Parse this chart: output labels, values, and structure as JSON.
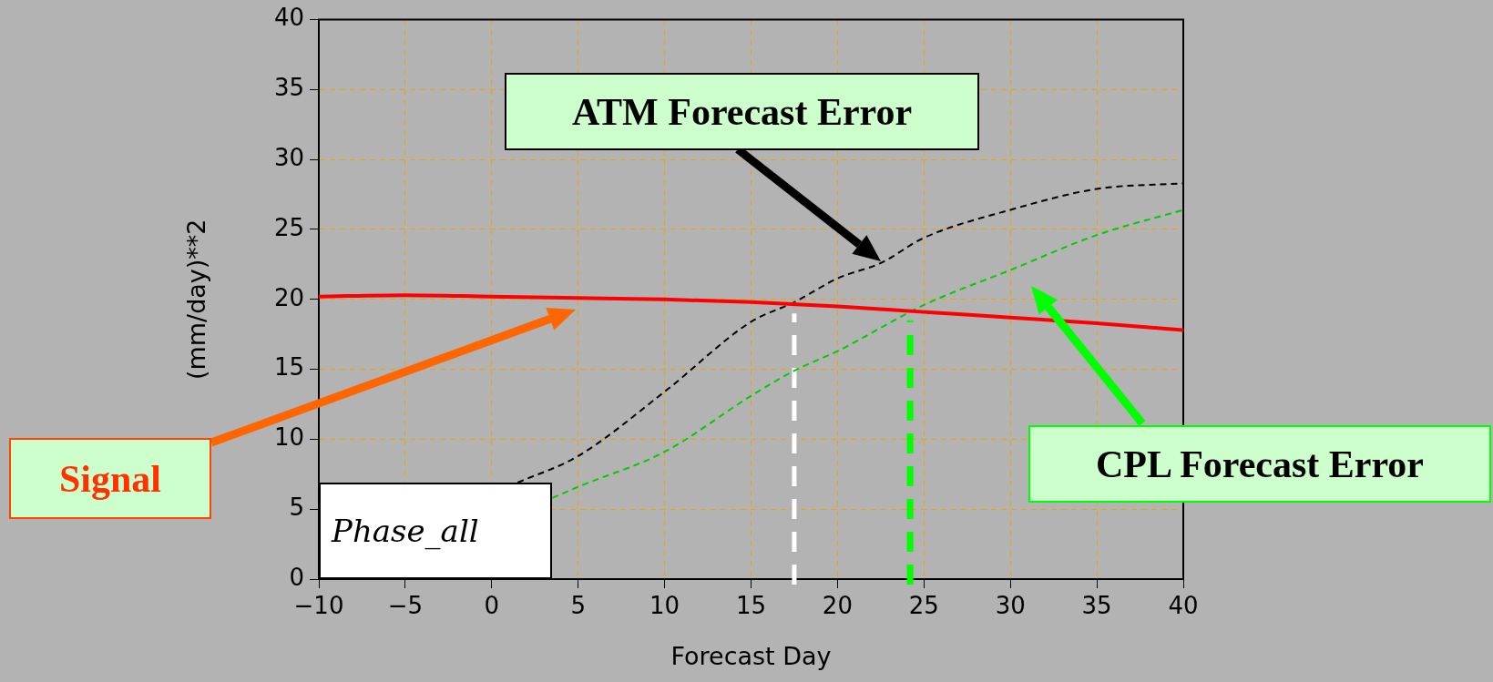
{
  "chart_data": {
    "type": "line",
    "xlabel": "Forecast Day",
    "ylabel": "(mm/day)**2",
    "xlim": [
      -10,
      40
    ],
    "xticks": [
      -10,
      -5,
      0,
      5,
      10,
      15,
      20,
      25,
      30,
      35,
      40
    ],
    "ylim": [
      0,
      40
    ],
    "yticks": [
      0,
      5,
      10,
      15,
      20,
      25,
      30,
      35,
      40
    ],
    "grid": true,
    "legend": false,
    "marker": "none",
    "series": [
      {
        "color": "#ff0000",
        "line_style": "solid",
        "x": [
          -10,
          -5,
          0,
          5,
          10,
          15,
          20,
          25,
          30,
          35,
          40
        ],
        "values": [
          20.2,
          20.3,
          20.2,
          20.1,
          20.0,
          19.8,
          19.5,
          19.1,
          18.7,
          18.3,
          17.8
        ]
      },
      {
        "color": "#000000",
        "line_style": "dashed",
        "x": [
          1.5,
          5,
          10,
          15,
          17.5,
          20,
          22.5,
          25,
          30,
          35,
          40
        ],
        "values": [
          6.9,
          8.8,
          13.4,
          18.4,
          19.8,
          21.5,
          22.6,
          24.4,
          26.4,
          27.9,
          28.3
        ]
      },
      {
        "color": "#00cc00",
        "line_style": "dashed",
        "x": [
          3.5,
          5,
          10,
          15,
          17.5,
          20,
          25,
          30,
          35,
          40
        ],
        "values": [
          5.8,
          6.6,
          9.1,
          13.1,
          14.9,
          16.3,
          19.6,
          22.1,
          24.6,
          26.4
        ]
      }
    ],
    "ref_lines": [
      {
        "axis": "x",
        "value": 17.5,
        "color": "#ffffff",
        "line_style": "dashed"
      },
      {
        "axis": "x",
        "value": 24.2,
        "color": "#00ff00",
        "line_style": "dashed"
      }
    ],
    "annotations": [
      "Signal",
      "ATM Forecast Error",
      "CPL Forecast Error",
      "Phase_all"
    ]
  }
}
